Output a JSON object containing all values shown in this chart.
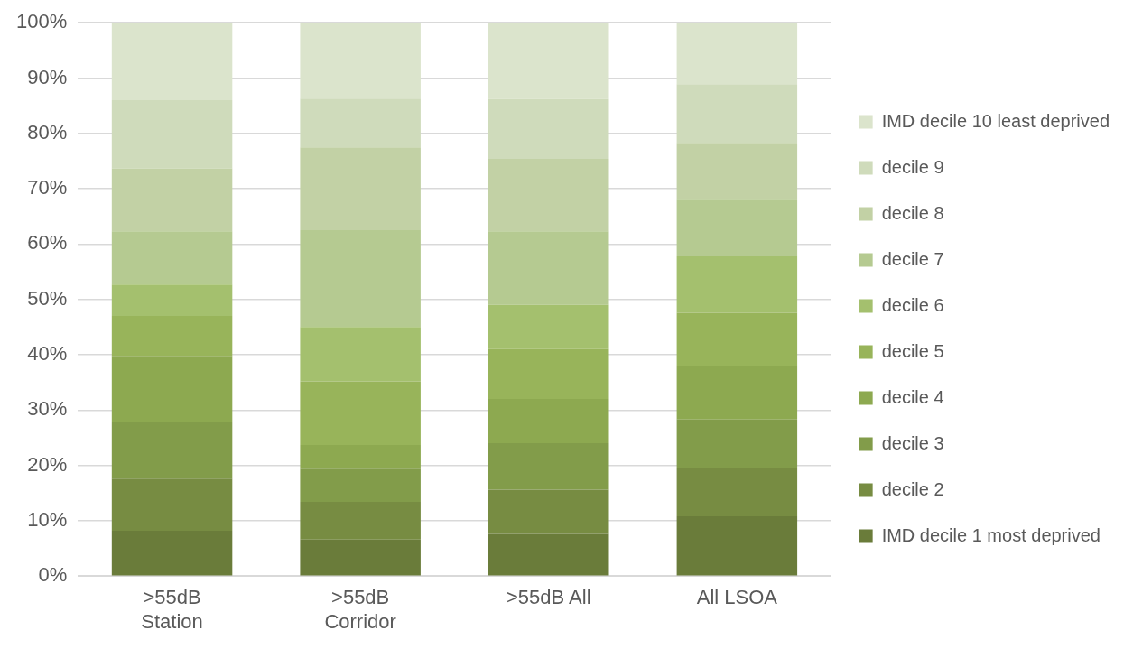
{
  "chart_data": {
    "type": "bar",
    "stacked": true,
    "categories": [
      ">55dB Station",
      ">55dB Corridor",
      ">55dB All",
      "All LSOA"
    ],
    "series": [
      {
        "name": "IMD decile 1 most deprived",
        "color": "#6a7c3a",
        "values": [
          8.2,
          6.6,
          7.6,
          10.8
        ]
      },
      {
        "name": "decile 2",
        "color": "#778c42",
        "values": [
          9.4,
          6.8,
          8.0,
          8.8
        ]
      },
      {
        "name": "decile 3",
        "color": "#829c4a",
        "values": [
          10.2,
          6.0,
          8.4,
          8.7
        ]
      },
      {
        "name": "decile 4",
        "color": "#8da950",
        "values": [
          12.0,
          4.3,
          8.0,
          9.7
        ]
      },
      {
        "name": "decile 5",
        "color": "#98b45a",
        "values": [
          7.2,
          11.5,
          9.0,
          9.6
        ]
      },
      {
        "name": "decile 6",
        "color": "#a4c06e",
        "values": [
          5.7,
          9.8,
          8.0,
          10.2
        ]
      },
      {
        "name": "decile 7",
        "color": "#b5ca91",
        "values": [
          9.6,
          17.5,
          13.3,
          10.2
        ]
      },
      {
        "name": "decile 8",
        "color": "#c2d1a5",
        "values": [
          11.4,
          15.0,
          13.1,
          10.3
        ]
      },
      {
        "name": "decile 9",
        "color": "#cfdbbb",
        "values": [
          12.3,
          8.8,
          10.8,
          10.6
        ]
      },
      {
        "name": "IMD decile 10 least deprived",
        "color": "#dbe4cc",
        "values": [
          14.0,
          13.7,
          13.8,
          11.1
        ]
      }
    ],
    "ylim": [
      0,
      100
    ],
    "yticks": [
      {
        "value": 0,
        "label": "0%"
      },
      {
        "value": 10,
        "label": "10%"
      },
      {
        "value": 20,
        "label": "20%"
      },
      {
        "value": 30,
        "label": "30%"
      },
      {
        "value": 40,
        "label": "40%"
      },
      {
        "value": 50,
        "label": "50%"
      },
      {
        "value": 60,
        "label": "60%"
      },
      {
        "value": 70,
        "label": "70%"
      },
      {
        "value": 80,
        "label": "80%"
      },
      {
        "value": 90,
        "label": "90%"
      },
      {
        "value": 100,
        "label": "100%"
      }
    ],
    "grid": "y",
    "legend": "right"
  }
}
